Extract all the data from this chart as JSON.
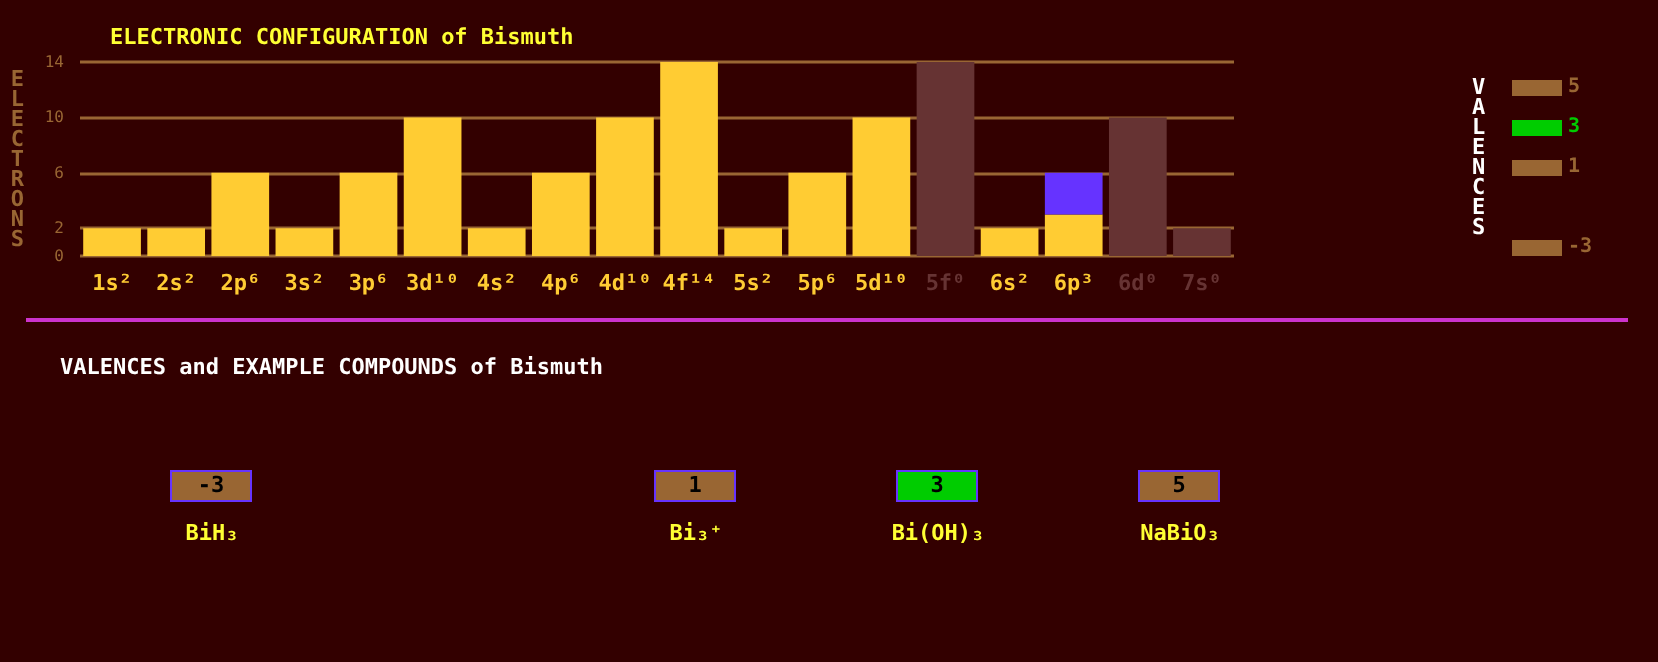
{
  "chart_data": [
    {
      "type": "bar",
      "title": "ELECTRONIC CONFIGURATION of Bismuth",
      "ylabel": "ELECTRONS",
      "legend_title": "VALENCES",
      "categories": [
        "1s²",
        "2s²",
        "2p⁶",
        "3s²",
        "3p⁶",
        "3d¹⁰",
        "4s²",
        "4p⁶",
        "4d¹⁰",
        "4f¹⁴",
        "5s²",
        "5p⁶",
        "5d¹⁰",
        "5f⁰",
        "6s²",
        "6p³",
        "6d⁰",
        "7s⁰"
      ],
      "stacked": true,
      "ylim": [
        0,
        14
      ],
      "yticks": [
        0,
        2,
        6,
        10,
        14
      ],
      "grid": "y",
      "series": [
        {
          "color": "#ffcc33",
          "values": [
            2,
            2,
            6,
            2,
            6,
            10,
            2,
            6,
            10,
            14,
            2,
            6,
            10,
            null,
            2,
            3,
            null,
            null
          ]
        },
        {
          "color": "#6633ff",
          "values": [
            null,
            null,
            null,
            null,
            null,
            null,
            null,
            null,
            null,
            null,
            null,
            null,
            null,
            null,
            null,
            3,
            null,
            null
          ]
        },
        {
          "color": "#663333",
          "values": [
            null,
            null,
            null,
            null,
            null,
            null,
            null,
            null,
            null,
            null,
            null,
            null,
            null,
            14,
            null,
            null,
            10,
            2
          ]
        }
      ]
    },
    {
      "type": "other",
      "title": "VALENCES and EXAMPLE COMPOUNDS of Bismuth",
      "categories": [
        "BiH₃",
        "Bi₃⁺",
        "Bi(OH)₃",
        "NaBiO₃"
      ],
      "values": [
        -3,
        1,
        3,
        5
      ],
      "value_labels": [
        "-3",
        "1",
        "3",
        "5"
      ],
      "colors": [
        "#996633",
        "#996633",
        "#00cc00",
        "#996633"
      ]
    }
  ]
}
